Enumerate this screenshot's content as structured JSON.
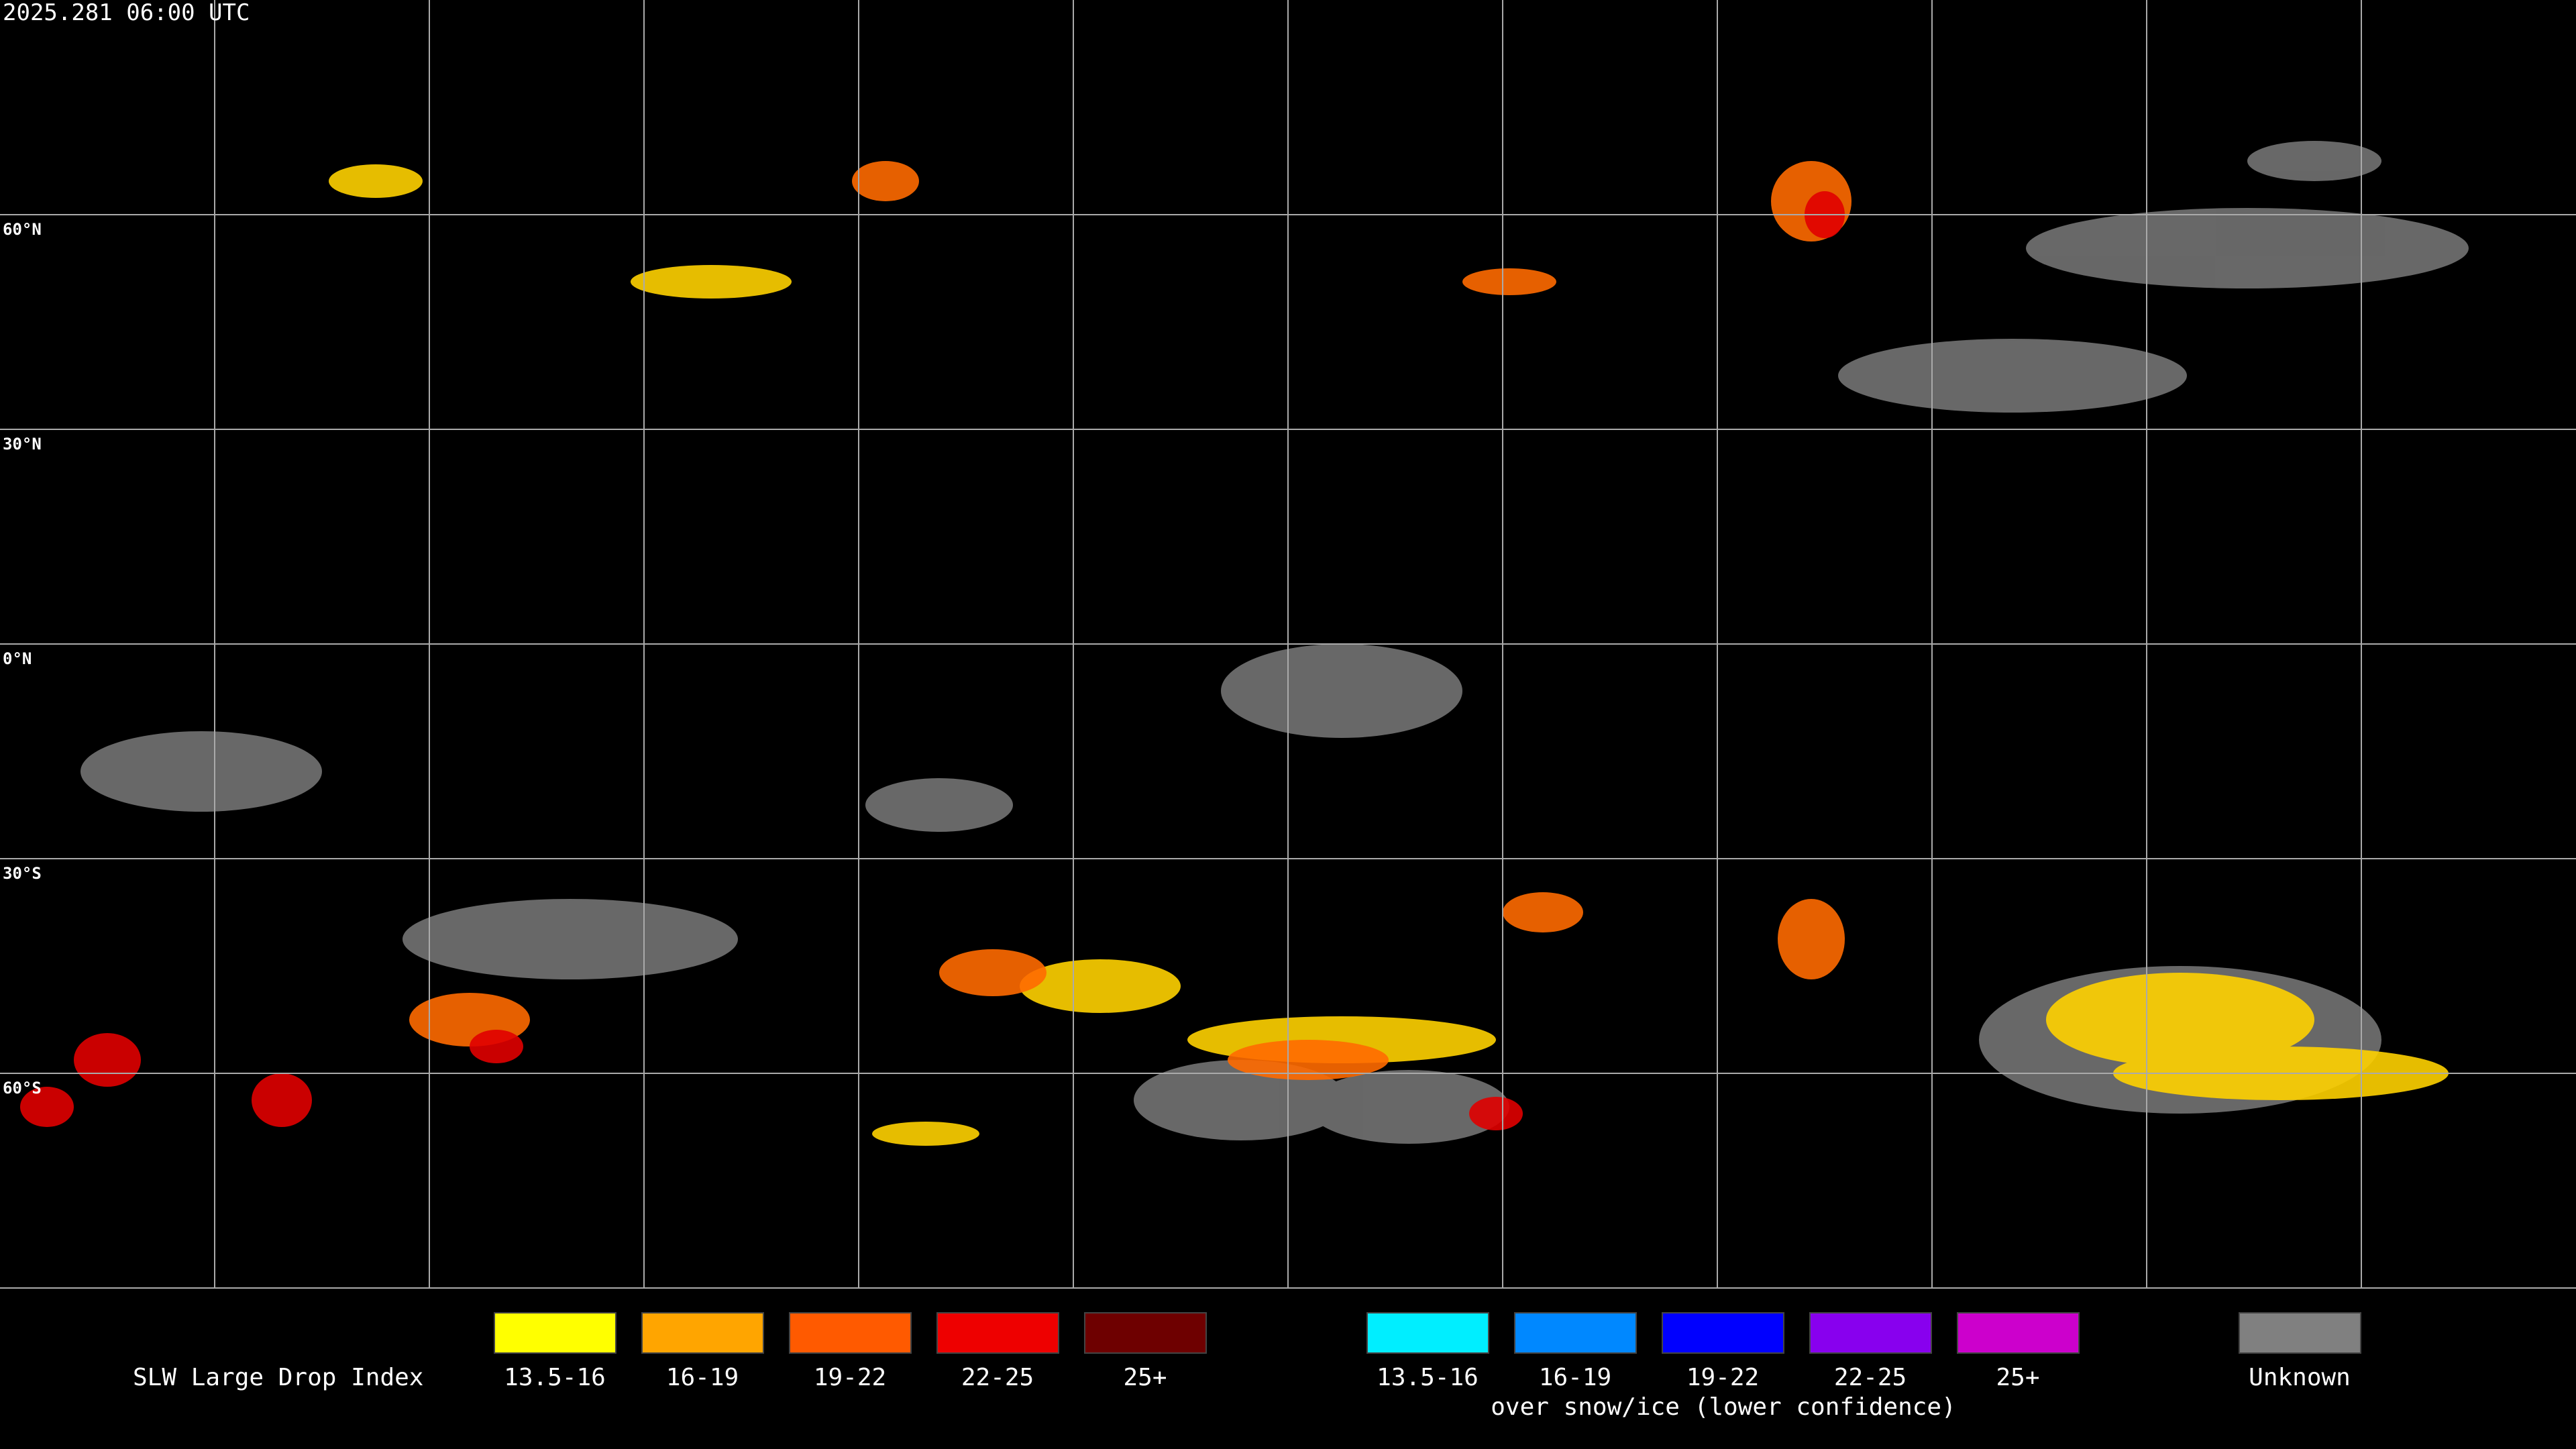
{
  "header": {
    "timestamp": "2025.281 06:00 UTC"
  },
  "map": {
    "lat_labels": [
      "60°N",
      "30°N",
      "0°N",
      "30°S",
      "60°S"
    ]
  },
  "legend": {
    "title": "SLW Large Drop Index",
    "items": [
      {
        "label": "13.5-16",
        "color": "#ffff00"
      },
      {
        "label": "16-19",
        "color": "#ffa500"
      },
      {
        "label": "19-22",
        "color": "#ff5a00"
      },
      {
        "label": "22-25",
        "color": "#ee0000"
      },
      {
        "label": "25+",
        "color": "#6e0000"
      }
    ],
    "snow_items": [
      {
        "label": "13.5-16",
        "color": "#00eeff"
      },
      {
        "label": "16-19",
        "color": "#0088ff"
      },
      {
        "label": "19-22",
        "color": "#0000ff"
      },
      {
        "label": "22-25",
        "color": "#8800ee"
      },
      {
        "label": "25+",
        "color": "#cc00cc"
      }
    ],
    "snow_caption": "over snow/ice (lower confidence)",
    "unknown": {
      "label": "Unknown",
      "color": "#808080"
    }
  }
}
